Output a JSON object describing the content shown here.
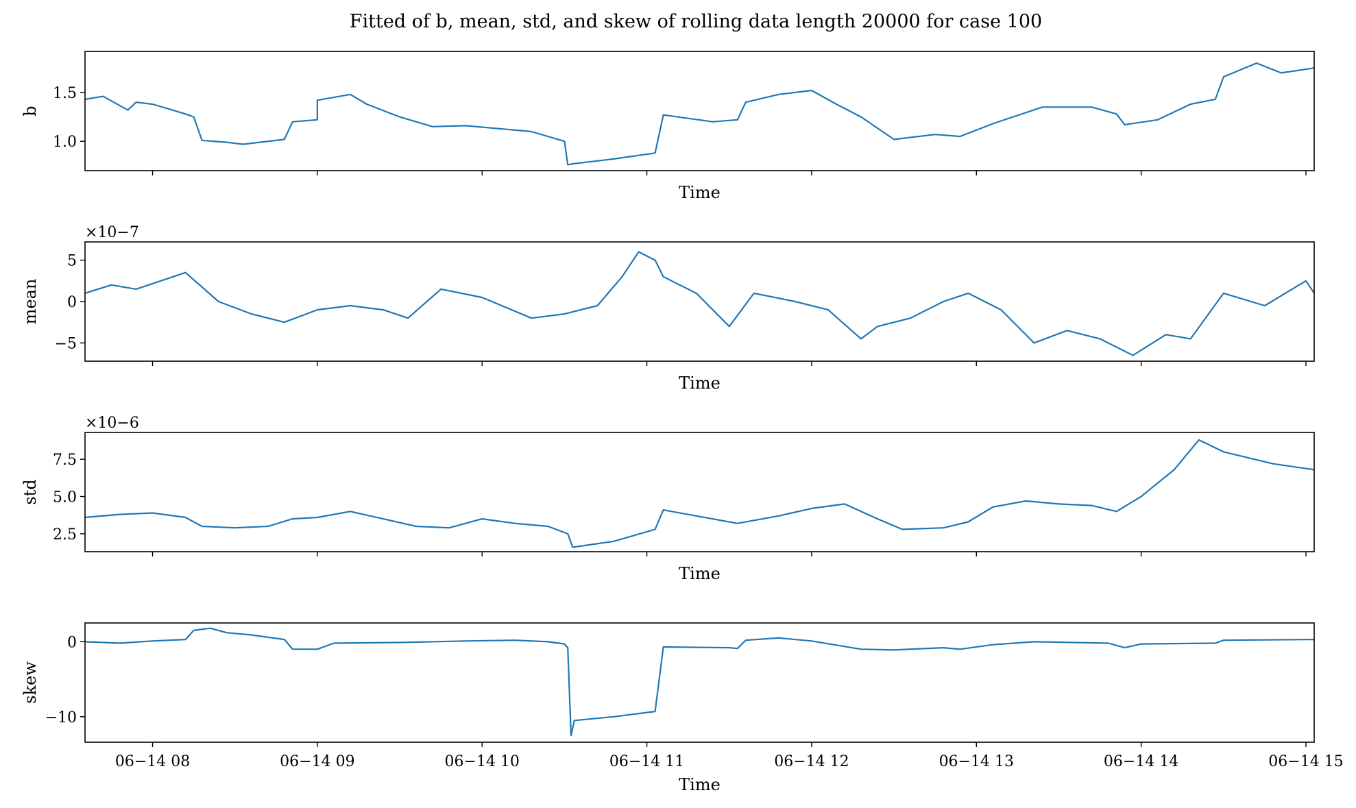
{
  "chart_data": {
    "type": "line",
    "title": "Fitted of b, mean, std, and skew of rolling data length 20000 for case 100",
    "x_tick_labels": [
      "06−14 08",
      "06−14 09",
      "06−14 10",
      "06−14 11",
      "06−14 12",
      "06−14 13",
      "06−14 14",
      "06−14 15"
    ],
    "xlim_hours": [
      7.59,
      15.05
    ],
    "subplots": [
      {
        "name": "b",
        "ylabel": "b",
        "xlabel": "Time",
        "offset_text": "",
        "ylim": [
          0.7,
          1.92
        ],
        "yticks": [
          1.0,
          1.5
        ],
        "ytick_labels": [
          "1.0",
          "1.5"
        ],
        "x_hours": [
          7.59,
          7.7,
          7.85,
          7.9,
          8.0,
          8.1,
          8.2,
          8.25,
          8.3,
          8.45,
          8.55,
          8.65,
          8.8,
          8.85,
          9.0,
          9.0,
          9.2,
          9.3,
          9.5,
          9.7,
          9.9,
          10.1,
          10.3,
          10.5,
          10.52,
          10.55,
          10.8,
          11.05,
          11.1,
          11.4,
          11.55,
          11.6,
          11.8,
          12.0,
          12.15,
          12.3,
          12.5,
          12.75,
          12.9,
          13.1,
          13.4,
          13.7,
          13.85,
          13.9,
          14.1,
          14.3,
          14.45,
          14.5,
          14.7,
          14.85,
          15.05
        ],
        "y": [
          1.43,
          1.46,
          1.32,
          1.4,
          1.38,
          1.33,
          1.28,
          1.25,
          1.01,
          0.99,
          0.97,
          0.99,
          1.02,
          1.2,
          1.22,
          1.42,
          1.48,
          1.38,
          1.25,
          1.15,
          1.16,
          1.13,
          1.1,
          1.0,
          0.76,
          0.77,
          0.82,
          0.88,
          1.27,
          1.2,
          1.22,
          1.4,
          1.48,
          1.52,
          1.38,
          1.25,
          1.02,
          1.07,
          1.05,
          1.18,
          1.35,
          1.35,
          1.28,
          1.17,
          1.22,
          1.38,
          1.43,
          1.66,
          1.8,
          1.7,
          1.75
        ]
      },
      {
        "name": "mean",
        "ylabel": "mean",
        "xlabel": "Time",
        "offset_text": "×10−7",
        "ylim": [
          -7.2,
          7.2
        ],
        "yticks": [
          -5,
          0,
          5
        ],
        "ytick_labels": [
          "−5",
          "0",
          "5"
        ],
        "x_hours": [
          7.59,
          7.75,
          7.9,
          8.05,
          8.2,
          8.4,
          8.6,
          8.8,
          9.0,
          9.2,
          9.4,
          9.55,
          9.75,
          10.0,
          10.3,
          10.5,
          10.7,
          10.85,
          10.95,
          11.05,
          11.1,
          11.3,
          11.5,
          11.65,
          11.9,
          12.1,
          12.3,
          12.4,
          12.6,
          12.8,
          12.95,
          13.15,
          13.35,
          13.55,
          13.75,
          13.95,
          14.15,
          14.3,
          14.5,
          14.75,
          15.0,
          15.05
        ],
        "y": [
          1.0,
          2.0,
          1.5,
          2.5,
          3.5,
          0.0,
          -1.5,
          -2.5,
          -1.0,
          -0.5,
          -1.0,
          -2.0,
          1.5,
          0.5,
          -2.0,
          -1.5,
          -0.5,
          3.0,
          6.0,
          5.0,
          3.0,
          1.0,
          -3.0,
          1.0,
          0.0,
          -1.0,
          -4.5,
          -3.0,
          -2.0,
          0.0,
          1.0,
          -1.0,
          -5.0,
          -3.5,
          -4.5,
          -6.5,
          -4.0,
          -4.5,
          1.0,
          -0.5,
          2.5,
          1.0
        ]
      },
      {
        "name": "std",
        "ylabel": "std",
        "xlabel": "Time",
        "offset_text": "×10−6",
        "ylim": [
          1.3,
          9.3
        ],
        "yticks": [
          2.5,
          5.0,
          7.5
        ],
        "ytick_labels": [
          "2.5",
          "5.0",
          "7.5"
        ],
        "x_hours": [
          7.59,
          7.8,
          8.0,
          8.2,
          8.3,
          8.5,
          8.7,
          8.85,
          9.0,
          9.2,
          9.4,
          9.6,
          9.8,
          10.0,
          10.2,
          10.4,
          10.52,
          10.55,
          10.8,
          11.05,
          11.1,
          11.3,
          11.55,
          11.8,
          12.0,
          12.2,
          12.4,
          12.55,
          12.8,
          12.95,
          13.1,
          13.3,
          13.5,
          13.7,
          13.85,
          14.0,
          14.2,
          14.35,
          14.5,
          14.8,
          15.05
        ],
        "y": [
          3.6,
          3.8,
          3.9,
          3.6,
          3.0,
          2.9,
          3.0,
          3.5,
          3.6,
          4.0,
          3.5,
          3.0,
          2.9,
          3.5,
          3.2,
          3.0,
          2.5,
          1.6,
          2.0,
          2.8,
          4.1,
          3.7,
          3.2,
          3.7,
          4.2,
          4.5,
          3.5,
          2.8,
          2.9,
          3.3,
          4.3,
          4.7,
          4.5,
          4.4,
          4.0,
          5.0,
          6.8,
          8.8,
          8.0,
          7.2,
          6.8
        ]
      },
      {
        "name": "skew",
        "ylabel": "skew",
        "xlabel": "Time",
        "offset_text": "",
        "ylim": [
          -13.4,
          2.5
        ],
        "yticks": [
          -10,
          0
        ],
        "ytick_labels": [
          "−10",
          "0"
        ],
        "x_hours": [
          7.59,
          7.8,
          8.0,
          8.2,
          8.25,
          8.35,
          8.45,
          8.6,
          8.8,
          8.85,
          9.0,
          9.1,
          9.5,
          9.9,
          10.2,
          10.4,
          10.5,
          10.52,
          10.54,
          10.56,
          10.8,
          11.05,
          11.1,
          11.5,
          11.55,
          11.6,
          11.8,
          12.0,
          12.3,
          12.5,
          12.8,
          12.9,
          13.1,
          13.35,
          13.8,
          13.9,
          14.0,
          14.45,
          14.5,
          15.05
        ],
        "y": [
          0.0,
          -0.2,
          0.1,
          0.3,
          1.5,
          1.8,
          1.2,
          0.9,
          0.3,
          -1.0,
          -1.0,
          -0.2,
          -0.1,
          0.1,
          0.2,
          0.0,
          -0.3,
          -0.8,
          -12.5,
          -10.5,
          -10.0,
          -9.3,
          -0.7,
          -0.8,
          -0.9,
          0.2,
          0.5,
          0.1,
          -1.0,
          -1.1,
          -0.8,
          -1.0,
          -0.4,
          0.0,
          -0.2,
          -0.8,
          -0.3,
          -0.2,
          0.2,
          0.3
        ]
      }
    ]
  }
}
